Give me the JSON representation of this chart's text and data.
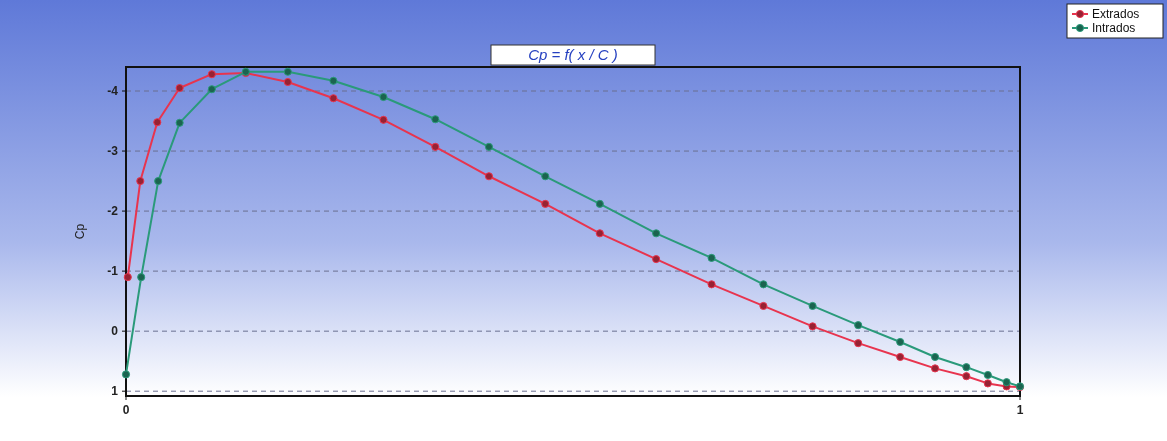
{
  "chart_data": {
    "type": "line",
    "title": "Cp = f( x / C )",
    "ylabel": "Cp",
    "xlim": [
      0,
      1
    ],
    "xticks": [
      0,
      1
    ],
    "ylim": [
      1.08,
      -4.4
    ],
    "yticks": [
      -4,
      -3,
      -2,
      -1,
      0,
      1
    ],
    "grid": "y",
    "legend": "top right",
    "marker": "circle",
    "line_style": "solid",
    "series": [
      {
        "name": "Extrados",
        "color": "#e8344e",
        "x": [
          0.002,
          0.016,
          0.035,
          0.06,
          0.096,
          0.134,
          0.181,
          0.232,
          0.288,
          0.346,
          0.406,
          0.469,
          0.53,
          0.593,
          0.655,
          0.713,
          0.768,
          0.819,
          0.866,
          0.905,
          0.94,
          0.964,
          0.985,
          1.0
        ],
        "values": [
          -0.9,
          -2.5,
          -3.48,
          -4.05,
          -4.28,
          -4.3,
          -4.15,
          -3.88,
          -3.52,
          -3.07,
          -2.58,
          -2.12,
          -1.63,
          -1.2,
          -0.78,
          -0.42,
          -0.08,
          0.2,
          0.43,
          0.62,
          0.75,
          0.87,
          0.92,
          0.93
        ]
      },
      {
        "name": "Intrados",
        "color": "#2a9a7a",
        "x": [
          0,
          0.017,
          0.036,
          0.06,
          0.096,
          0.134,
          0.181,
          0.232,
          0.288,
          0.346,
          0.406,
          0.469,
          0.53,
          0.593,
          0.655,
          0.713,
          0.768,
          0.819,
          0.866,
          0.905,
          0.94,
          0.964,
          0.985,
          1.0
        ],
        "values": [
          0.72,
          -0.9,
          -2.5,
          -3.47,
          -4.03,
          -4.32,
          -4.32,
          -4.17,
          -3.9,
          -3.53,
          -3.07,
          -2.58,
          -2.12,
          -1.63,
          -1.22,
          -0.78,
          -0.42,
          -0.1,
          0.18,
          0.43,
          0.6,
          0.73,
          0.85,
          0.92
        ]
      }
    ]
  }
}
